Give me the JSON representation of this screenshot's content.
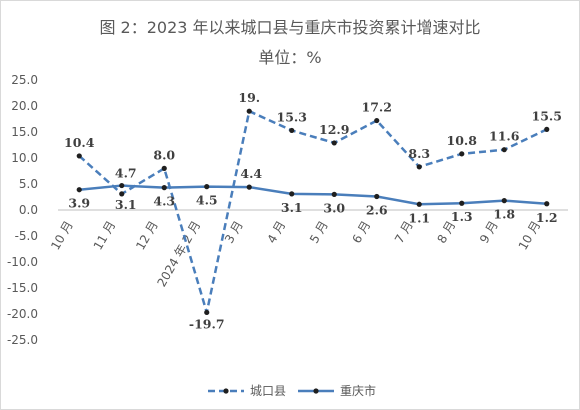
{
  "chart_data": {
    "type": "line",
    "title": "图 2：2023 年以来城口县与重庆市投资累计增速对比",
    "subtitle": "单位：%",
    "categories": [
      "10 月",
      "11 月",
      "12 月",
      "2024 年 2 月",
      "3 月",
      "4 月",
      "5 月",
      "6 月",
      "7 月",
      "8 月",
      "9 月",
      "10 月"
    ],
    "ylim": [
      -25,
      25
    ],
    "yticks": [
      "25.0",
      "20.0",
      "15.0",
      "10.0",
      "5.0",
      "0.0",
      "-5.0",
      "-10.0",
      "-15.0",
      "-20.0",
      "-25.0"
    ],
    "grid": false,
    "legend_position": "bottom",
    "series": [
      {
        "name": "城口县",
        "style": "dashed",
        "color": "#4a7ebb",
        "values": [
          10.4,
          3.1,
          8.0,
          -19.7,
          19.0,
          15.3,
          12.9,
          17.2,
          8.3,
          10.8,
          11.6,
          15.5
        ],
        "labels": [
          "10.4",
          "3.1",
          "8.0",
          "-19.7",
          "19.",
          "15.3",
          "12.9",
          "17.2",
          "8.3",
          "10.8",
          "11.6",
          "15.5"
        ]
      },
      {
        "name": "重庆市",
        "style": "solid",
        "color": "#4a7ebb",
        "values": [
          3.9,
          4.7,
          4.3,
          4.5,
          4.4,
          3.1,
          3.0,
          2.6,
          1.1,
          1.3,
          1.8,
          1.2
        ],
        "labels": [
          "3.9",
          "4.7",
          "4.3",
          "4.5",
          "4.4",
          "3.1",
          "3.0",
          "2.6",
          "1.1",
          "1.3",
          "1.8",
          "1.2"
        ]
      }
    ]
  }
}
